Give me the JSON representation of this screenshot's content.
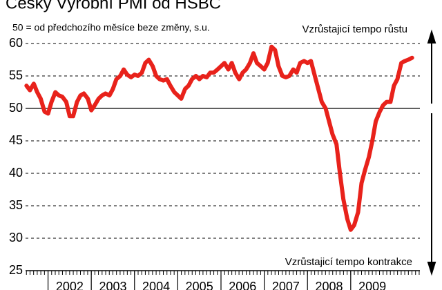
{
  "chart_data": {
    "type": "line",
    "title": "Český Výrobní PMI od HSBC",
    "subtitle": "50 = od předchozího měsíce beze změny, s.u.",
    "annotations": [
      "Vzrůstajicí tempo růstu",
      "Vzrůstajicí tempo kontrakce"
    ],
    "x": [
      2001.5,
      2001.58,
      2001.67,
      2001.75,
      2001.83,
      2001.92,
      2002,
      2002.08,
      2002.17,
      2002.25,
      2002.33,
      2002.42,
      2002.5,
      2002.58,
      2002.67,
      2002.75,
      2002.83,
      2002.92,
      2003,
      2003.08,
      2003.17,
      2003.25,
      2003.33,
      2003.42,
      2003.5,
      2003.58,
      2003.67,
      2003.75,
      2003.83,
      2003.92,
      2004,
      2004.08,
      2004.17,
      2004.25,
      2004.33,
      2004.42,
      2004.5,
      2004.58,
      2004.67,
      2004.75,
      2004.83,
      2004.92,
      2005,
      2005.08,
      2005.17,
      2005.25,
      2005.33,
      2005.42,
      2005.5,
      2005.58,
      2005.67,
      2005.75,
      2005.83,
      2005.92,
      2006,
      2006.08,
      2006.17,
      2006.25,
      2006.33,
      2006.42,
      2006.5,
      2006.58,
      2006.67,
      2006.75,
      2006.83,
      2006.92,
      2007,
      2007.08,
      2007.17,
      2007.25,
      2007.33,
      2007.42,
      2007.5,
      2007.58,
      2007.67,
      2007.75,
      2007.83,
      2007.92,
      2008,
      2008.08,
      2008.17,
      2008.25,
      2008.33,
      2008.42,
      2008.5,
      2008.58,
      2008.67,
      2008.75,
      2008.83,
      2008.92,
      2009,
      2009.08,
      2009.17,
      2009.25,
      2009.33,
      2009.42,
      2009.5,
      2009.58,
      2009.67,
      2009.75,
      2009.83,
      2009.92,
      2010,
      2010.08,
      2010.17,
      2010.25,
      2010.33,
      2010.42
    ],
    "series": [
      {
        "name": "PMI",
        "color": "#e8221b",
        "values": [
          53.5,
          52.8,
          53.8,
          52.5,
          51.5,
          49.5,
          49.2,
          51,
          52.5,
          52,
          51.8,
          51,
          48.8,
          48.8,
          51,
          52,
          52.3,
          51.5,
          49.7,
          50.5,
          51.5,
          52,
          52.3,
          52,
          53,
          54.5,
          55,
          56,
          55.2,
          54.8,
          55.2,
          55,
          55.5,
          57,
          57.5,
          56.5,
          55,
          54.5,
          54.3,
          54.5,
          53.5,
          52.5,
          52,
          51.5,
          53,
          53.5,
          54.5,
          55,
          54.5,
          55,
          54.8,
          55.5,
          55.5,
          56,
          56.5,
          57,
          56,
          57,
          55.5,
          54.5,
          55.5,
          56,
          57,
          58.5,
          57,
          56.5,
          56,
          57,
          59.5,
          59,
          56.5,
          55,
          54.8,
          55,
          56,
          55.5,
          57,
          57.3,
          57,
          57.3,
          55,
          53,
          51,
          50,
          48,
          46,
          44.5,
          40,
          36,
          33,
          31.3,
          32,
          34,
          38.5,
          40.5,
          42.5,
          45,
          48,
          49.5,
          50.5,
          51,
          51,
          53.5,
          54.5,
          57,
          57.3,
          57.5,
          57.8
        ]
      }
    ],
    "xlim": [
      2001.48,
      2010.6
    ],
    "xticks": [
      {
        "value": 2002,
        "label": "2002"
      },
      {
        "value": 2003,
        "label": "2003"
      },
      {
        "value": 2004,
        "label": "2004"
      },
      {
        "value": 2005,
        "label": "2005"
      },
      {
        "value": 2006,
        "label": "2006"
      },
      {
        "value": 2007,
        "label": "2007"
      },
      {
        "value": 2008,
        "label": "2008"
      },
      {
        "value": 2009,
        "label": "2009"
      }
    ],
    "ylim": [
      25,
      60
    ],
    "yticks": [
      25,
      30,
      35,
      40,
      45,
      50,
      55,
      60
    ],
    "grid": true,
    "reference_line": 50
  }
}
